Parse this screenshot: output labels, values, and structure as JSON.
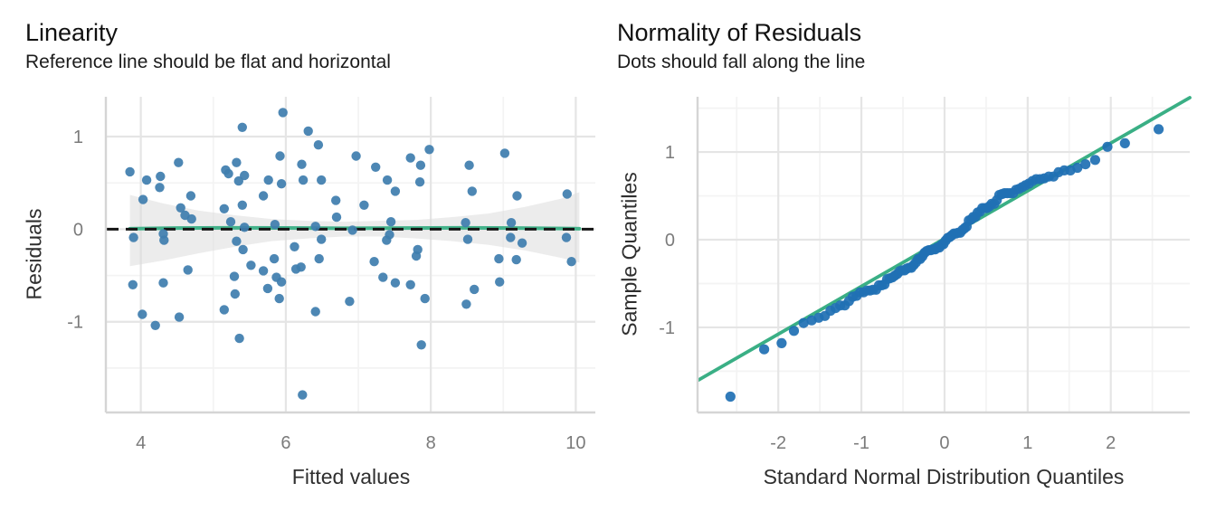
{
  "chart_data": [
    {
      "type": "scatter",
      "name": "linearity",
      "title": "Linearity",
      "subtitle": "Reference line should be flat and horizontal",
      "xlabel": "Fitted values",
      "ylabel": "Residuals",
      "xlim": [
        3.53,
        10.27
      ],
      "ylim": [
        -1.97,
        1.43
      ],
      "x_ticks": {
        "values": [
          4,
          6,
          8,
          10
        ],
        "labels": [
          "4",
          "6",
          "8",
          "10"
        ]
      },
      "y_ticks": {
        "values": [
          -1,
          0,
          1
        ],
        "labels": [
          "-1",
          "0",
          "1"
        ]
      },
      "grid": true,
      "legend": "none",
      "ref_line_y": 0,
      "smooth_line": [
        [
          3.85,
          0.005
        ],
        [
          4.5,
          0.012
        ],
        [
          5.2,
          0.015
        ],
        [
          6.0,
          0.013
        ],
        [
          6.8,
          0.01
        ],
        [
          7.6,
          0.012
        ],
        [
          8.4,
          0.015
        ],
        [
          9.2,
          0.012
        ],
        [
          10.05,
          0.005
        ]
      ],
      "band": {
        "x": [
          3.85,
          4.3,
          4.8,
          5.3,
          5.8,
          6.3,
          6.8,
          7.3,
          7.8,
          8.3,
          8.8,
          9.3,
          9.8,
          10.05
        ],
        "upper": [
          0.37,
          0.28,
          0.2,
          0.15,
          0.11,
          0.09,
          0.08,
          0.09,
          0.1,
          0.13,
          0.17,
          0.24,
          0.33,
          0.4
        ],
        "lower": [
          -0.4,
          -0.34,
          -0.26,
          -0.19,
          -0.13,
          -0.1,
          -0.08,
          -0.08,
          -0.1,
          -0.13,
          -0.17,
          -0.23,
          -0.31,
          -0.36
        ]
      },
      "points": [
        [
          3.85,
          0.62
        ],
        [
          3.9,
          -0.09
        ],
        [
          3.89,
          -0.6
        ],
        [
          4.02,
          -0.92
        ],
        [
          4.03,
          0.32
        ],
        [
          4.08,
          0.53
        ],
        [
          4.2,
          -1.04
        ],
        [
          4.26,
          0.45
        ],
        [
          4.27,
          0.57
        ],
        [
          4.31,
          -0.05
        ],
        [
          4.31,
          -0.58
        ],
        [
          4.32,
          -0.12
        ],
        [
          4.52,
          0.72
        ],
        [
          4.53,
          -0.95
        ],
        [
          4.55,
          0.23
        ],
        [
          4.61,
          0.15
        ],
        [
          4.65,
          -0.44
        ],
        [
          4.69,
          0.36
        ],
        [
          4.7,
          0.11
        ],
        [
          5.15,
          0.22
        ],
        [
          5.15,
          -0.87
        ],
        [
          5.17,
          0.64
        ],
        [
          5.21,
          0.6
        ],
        [
          5.24,
          0.08
        ],
        [
          5.29,
          -0.51
        ],
        [
          5.3,
          -0.7
        ],
        [
          5.32,
          0.72
        ],
        [
          5.32,
          -0.13
        ],
        [
          5.35,
          0.52
        ],
        [
          5.36,
          -1.18
        ],
        [
          5.4,
          1.1
        ],
        [
          5.4,
          0.26
        ],
        [
          5.41,
          -0.22
        ],
        [
          5.43,
          0.58
        ],
        [
          5.43,
          0.02
        ],
        [
          5.52,
          -0.39
        ],
        [
          5.69,
          0.36
        ],
        [
          5.69,
          -0.45
        ],
        [
          5.75,
          -0.64
        ],
        [
          5.76,
          0.53
        ],
        [
          5.84,
          -0.32
        ],
        [
          5.85,
          0.05
        ],
        [
          5.87,
          -0.52
        ],
        [
          5.91,
          -0.75
        ],
        [
          5.92,
          0.79
        ],
        [
          5.94,
          0.49
        ],
        [
          5.94,
          -0.57
        ],
        [
          5.96,
          1.26
        ],
        [
          6.12,
          -0.19
        ],
        [
          6.14,
          -0.43
        ],
        [
          6.21,
          -0.41
        ],
        [
          6.22,
          0.7
        ],
        [
          6.23,
          -1.79
        ],
        [
          6.24,
          0.53
        ],
        [
          6.31,
          1.06
        ],
        [
          6.41,
          0.03
        ],
        [
          6.41,
          -0.89
        ],
        [
          6.45,
          0.91
        ],
        [
          6.46,
          -0.32
        ],
        [
          6.49,
          0.53
        ],
        [
          6.49,
          -0.11
        ],
        [
          6.69,
          0.31
        ],
        [
          6.7,
          0.13
        ],
        [
          6.88,
          -0.78
        ],
        [
          6.92,
          -0.01
        ],
        [
          6.97,
          0.79
        ],
        [
          7.08,
          0.26
        ],
        [
          7.22,
          -0.35
        ],
        [
          7.24,
          0.67
        ],
        [
          7.34,
          -0.52
        ],
        [
          7.39,
          -0.12
        ],
        [
          7.4,
          0.53
        ],
        [
          7.43,
          -0.06
        ],
        [
          7.45,
          0.08
        ],
        [
          7.51,
          0.41
        ],
        [
          7.51,
          -0.58
        ],
        [
          7.72,
          0.77
        ],
        [
          7.72,
          -0.6
        ],
        [
          7.8,
          -0.29
        ],
        [
          7.82,
          -0.22
        ],
        [
          7.85,
          0.51
        ],
        [
          7.86,
          0.69
        ],
        [
          7.87,
          -1.25
        ],
        [
          7.92,
          -0.75
        ],
        [
          7.98,
          0.86
        ],
        [
          8.48,
          0.07
        ],
        [
          8.49,
          -0.81
        ],
        [
          8.51,
          -0.11
        ],
        [
          8.53,
          0.69
        ],
        [
          8.57,
          0.41
        ],
        [
          8.6,
          -0.65
        ],
        [
          8.94,
          -0.32
        ],
        [
          8.95,
          -0.57
        ],
        [
          9.02,
          0.82
        ],
        [
          9.1,
          -0.09
        ],
        [
          9.11,
          0.07
        ],
        [
          9.18,
          -0.33
        ],
        [
          9.19,
          0.36
        ],
        [
          9.26,
          -0.15
        ],
        [
          9.87,
          -0.09
        ],
        [
          9.88,
          0.38
        ],
        [
          9.94,
          -0.35
        ]
      ]
    },
    {
      "type": "scatter",
      "name": "qq",
      "title": "Normality of Residuals",
      "subtitle": "Dots should fall along the line",
      "xlabel": "Standard Normal Distribution Quantiles",
      "ylabel": "Sample Quantiles",
      "xlim": [
        -2.96,
        2.95
      ],
      "ylim": [
        -1.96,
        1.63
      ],
      "x_ticks": {
        "values": [
          -2,
          -1,
          0,
          1,
          2
        ],
        "labels": [
          "-2",
          "-1",
          "0",
          "1",
          "2"
        ]
      },
      "y_ticks": {
        "values": [
          -1,
          0,
          1
        ],
        "labels": [
          "-1",
          "0",
          "1"
        ]
      },
      "grid": true,
      "legend": "none",
      "line": {
        "x1": -2.96,
        "y1": -1.6,
        "x2": 2.95,
        "y2": 1.62
      },
      "points": [
        [
          -2.576,
          -1.79
        ],
        [
          -2.17,
          -1.25
        ],
        [
          -1.96,
          -1.18
        ],
        [
          -1.812,
          -1.04
        ],
        [
          -1.695,
          -0.95
        ],
        [
          -1.598,
          -0.92
        ],
        [
          -1.514,
          -0.89
        ],
        [
          -1.44,
          -0.87
        ],
        [
          -1.372,
          -0.81
        ],
        [
          -1.311,
          -0.78
        ],
        [
          -1.254,
          -0.75
        ],
        [
          -1.2,
          -0.75
        ],
        [
          -1.15,
          -0.7
        ],
        [
          -1.103,
          -0.65
        ],
        [
          -1.058,
          -0.64
        ],
        [
          -1.015,
          -0.6
        ],
        [
          -0.974,
          -0.6
        ],
        [
          -0.935,
          -0.58
        ],
        [
          -0.896,
          -0.58
        ],
        [
          -0.86,
          -0.57
        ],
        [
          -0.824,
          -0.57
        ],
        [
          -0.789,
          -0.52
        ],
        [
          -0.755,
          -0.52
        ],
        [
          -0.722,
          -0.51
        ],
        [
          -0.69,
          -0.45
        ],
        [
          -0.659,
          -0.44
        ],
        [
          -0.628,
          -0.43
        ],
        [
          -0.598,
          -0.41
        ],
        [
          -0.568,
          -0.39
        ],
        [
          -0.539,
          -0.36
        ],
        [
          -0.51,
          -0.35
        ],
        [
          -0.482,
          -0.35
        ],
        [
          -0.454,
          -0.33
        ],
        [
          -0.426,
          -0.32
        ],
        [
          -0.399,
          -0.32
        ],
        [
          -0.372,
          -0.29
        ],
        [
          -0.345,
          -0.26
        ],
        [
          -0.319,
          -0.22
        ],
        [
          -0.292,
          -0.22
        ],
        [
          -0.266,
          -0.19
        ],
        [
          -0.24,
          -0.15
        ],
        [
          -0.215,
          -0.13
        ],
        [
          -0.189,
          -0.12
        ],
        [
          -0.164,
          -0.12
        ],
        [
          -0.138,
          -0.11
        ],
        [
          -0.113,
          -0.11
        ],
        [
          -0.088,
          -0.09
        ],
        [
          -0.063,
          -0.09
        ],
        [
          -0.038,
          -0.06
        ],
        [
          -0.013,
          -0.05
        ],
        [
          0.013,
          -0.01
        ],
        [
          0.038,
          0.02
        ],
        [
          0.063,
          0.03
        ],
        [
          0.088,
          0.05
        ],
        [
          0.113,
          0.07
        ],
        [
          0.138,
          0.07
        ],
        [
          0.164,
          0.08
        ],
        [
          0.189,
          0.08
        ],
        [
          0.215,
          0.11
        ],
        [
          0.24,
          0.13
        ],
        [
          0.266,
          0.15
        ],
        [
          0.292,
          0.22
        ],
        [
          0.319,
          0.23
        ],
        [
          0.345,
          0.26
        ],
        [
          0.372,
          0.26
        ],
        [
          0.399,
          0.31
        ],
        [
          0.426,
          0.32
        ],
        [
          0.454,
          0.36
        ],
        [
          0.482,
          0.36
        ],
        [
          0.51,
          0.36
        ],
        [
          0.539,
          0.38
        ],
        [
          0.568,
          0.41
        ],
        [
          0.598,
          0.41
        ],
        [
          0.628,
          0.45
        ],
        [
          0.659,
          0.51
        ],
        [
          0.69,
          0.52
        ],
        [
          0.722,
          0.53
        ],
        [
          0.755,
          0.53
        ],
        [
          0.789,
          0.53
        ],
        [
          0.824,
          0.53
        ],
        [
          0.86,
          0.57
        ],
        [
          0.896,
          0.58
        ],
        [
          0.935,
          0.6
        ],
        [
          0.974,
          0.62
        ],
        [
          1.015,
          0.64
        ],
        [
          1.058,
          0.67
        ],
        [
          1.103,
          0.69
        ],
        [
          1.15,
          0.69
        ],
        [
          1.2,
          0.7
        ],
        [
          1.254,
          0.72
        ],
        [
          1.311,
          0.72
        ],
        [
          1.372,
          0.77
        ],
        [
          1.44,
          0.79
        ],
        [
          1.514,
          0.79
        ],
        [
          1.598,
          0.82
        ],
        [
          1.695,
          0.86
        ],
        [
          1.812,
          0.91
        ],
        [
          1.96,
          1.06
        ],
        [
          2.17,
          1.1
        ],
        [
          2.576,
          1.26
        ]
      ]
    }
  ],
  "colors": {
    "dot": "#3f7eae",
    "qq_dot": "#2070b4",
    "green": "#3aaf85",
    "dashed": "#141414",
    "band": "#dcdcdc",
    "grid_major": "#e5e5e5",
    "grid_minor": "#f3f3f3",
    "axis_line": "#d5d5d5",
    "tick_text": "#7b7b7b",
    "axis_title_text": "#2f2f2f",
    "title_text": "#111111",
    "background": "#ffffff"
  }
}
